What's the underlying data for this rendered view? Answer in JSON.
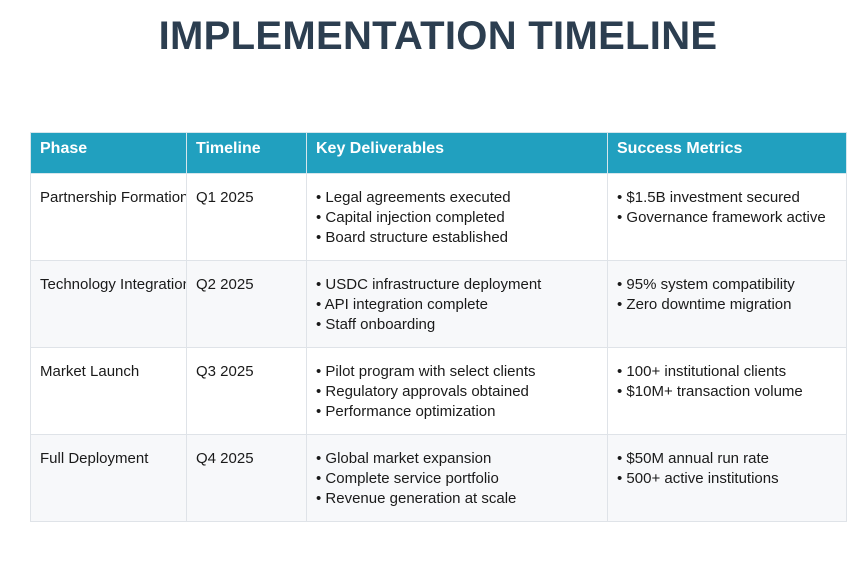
{
  "title": "IMPLEMENTATION TIMELINE",
  "table": {
    "headers": [
      "Phase",
      "Timeline",
      "Key Deliverables",
      "Success Metrics"
    ],
    "rows": [
      {
        "phase": "Partnership Formation",
        "timeline": "Q1 2025",
        "deliverables": [
          "• Legal agreements executed",
          "• Capital injection completed",
          "• Board structure established"
        ],
        "metrics": [
          "• $1.5B investment secured",
          "• Governance framework active"
        ]
      },
      {
        "phase": "Technology Integration",
        "timeline": "Q2 2025",
        "deliverables": [
          "• USDC infrastructure deployment",
          "• API integration complete",
          "• Staff onboarding"
        ],
        "metrics": [
          "• 95% system compatibility",
          "• Zero downtime migration"
        ]
      },
      {
        "phase": "Market Launch",
        "timeline": "Q3 2025",
        "deliverables": [
          "• Pilot program with select clients",
          "• Regulatory approvals obtained",
          "• Performance optimization"
        ],
        "metrics": [
          "• 100+ institutional clients",
          "• $10M+ transaction volume"
        ]
      },
      {
        "phase": "Full Deployment",
        "timeline": "Q4 2025",
        "deliverables": [
          "• Global market expansion",
          "• Complete service portfolio",
          "• Revenue generation at scale"
        ],
        "metrics": [
          "• $50M annual run rate",
          "• 500+ active institutions"
        ]
      }
    ]
  },
  "colors": {
    "title": "#2c3e50",
    "header_bg": "#21a0bf",
    "header_text": "#ffffff",
    "alt_row_bg": "#f7f8fa",
    "border": "#dfe3e8"
  }
}
